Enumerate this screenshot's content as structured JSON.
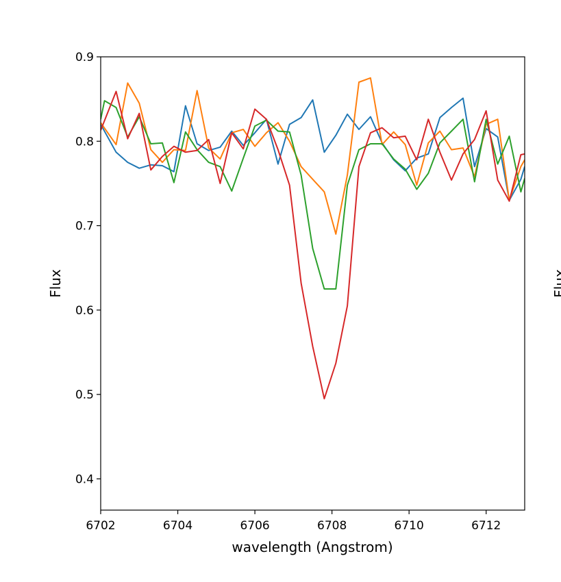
{
  "chart_data": {
    "type": "line",
    "title": "",
    "xlabel": "wavelength (Angstrom)",
    "ylabel": "Flux",
    "xlim": [
      6702,
      6713
    ],
    "ylim": [
      0.363,
      0.9
    ],
    "xticks": [
      6702,
      6704,
      6706,
      6708,
      6710,
      6712
    ],
    "yticks": [
      0.4,
      0.5,
      0.6,
      0.7,
      0.8,
      0.9
    ],
    "ytick_labels": [
      "0.4",
      "0.5",
      "0.6",
      "0.7",
      "0.8",
      "0.9"
    ],
    "xtick_labels": [
      "6702",
      "6704",
      "6706",
      "6708",
      "6710",
      "6712"
    ],
    "grid": false,
    "legend": "none",
    "clipped_neighbor_ylabel": "Flux",
    "series": [
      {
        "color": "#1f77b4",
        "x": [
          6702.0,
          6702.4,
          6702.7,
          6703.0,
          6703.3,
          6703.6,
          6703.9,
          6704.2,
          6704.5,
          6704.8,
          6705.1,
          6705.4,
          6705.7,
          6706.0,
          6706.3,
          6706.6,
          6706.9,
          6707.2,
          6707.5,
          6707.8,
          6708.1,
          6708.4,
          6708.7,
          6709.0,
          6709.3,
          6709.6,
          6709.9,
          6710.2,
          6710.5,
          6710.8,
          6711.1,
          6711.4,
          6711.7,
          6712.0,
          6712.3,
          6712.6,
          6712.9,
          6713.0
        ],
        "y": [
          0.82,
          0.787,
          0.775,
          0.768,
          0.772,
          0.771,
          0.764,
          0.842,
          0.797,
          0.789,
          0.793,
          0.812,
          0.795,
          0.81,
          0.826,
          0.773,
          0.82,
          0.828,
          0.849,
          0.787,
          0.807,
          0.832,
          0.814,
          0.829,
          0.798,
          0.778,
          0.765,
          0.78,
          0.785,
          0.828,
          0.84,
          0.851,
          0.77,
          0.815,
          0.805,
          0.73,
          0.755,
          0.77
        ]
      },
      {
        "color": "#ff7f0e",
        "x": [
          6702.0,
          6702.4,
          6702.7,
          6703.0,
          6703.3,
          6703.6,
          6703.9,
          6704.2,
          6704.5,
          6704.8,
          6705.1,
          6705.4,
          6705.7,
          6706.0,
          6706.3,
          6706.6,
          6706.9,
          6707.2,
          6707.5,
          6707.8,
          6708.1,
          6708.4,
          6708.7,
          6709.0,
          6709.3,
          6709.6,
          6709.9,
          6710.2,
          6710.5,
          6710.8,
          6711.1,
          6711.4,
          6711.7,
          6712.0,
          6712.3,
          6712.6,
          6712.9,
          6713.0
        ],
        "y": [
          0.822,
          0.796,
          0.869,
          0.845,
          0.79,
          0.775,
          0.79,
          0.789,
          0.86,
          0.792,
          0.779,
          0.81,
          0.814,
          0.794,
          0.81,
          0.822,
          0.8,
          0.77,
          0.755,
          0.74,
          0.69,
          0.76,
          0.87,
          0.875,
          0.796,
          0.811,
          0.796,
          0.748,
          0.798,
          0.812,
          0.79,
          0.792,
          0.758,
          0.82,
          0.826,
          0.73,
          0.77,
          0.778
        ]
      },
      {
        "color": "#2ca02c",
        "x": [
          6702.0,
          6702.1,
          6702.4,
          6702.7,
          6703.0,
          6703.3,
          6703.6,
          6703.9,
          6704.2,
          6704.5,
          6704.8,
          6705.1,
          6705.4,
          6705.7,
          6706.0,
          6706.3,
          6706.6,
          6706.9,
          6707.2,
          6707.5,
          6707.8,
          6708.1,
          6708.4,
          6708.7,
          6709.0,
          6709.3,
          6709.6,
          6709.9,
          6710.2,
          6710.5,
          6710.8,
          6711.1,
          6711.4,
          6711.7,
          6712.0,
          6712.3,
          6712.6,
          6712.9,
          6713.0
        ],
        "y": [
          0.826,
          0.848,
          0.84,
          0.805,
          0.829,
          0.797,
          0.798,
          0.751,
          0.811,
          0.79,
          0.775,
          0.77,
          0.741,
          0.78,
          0.818,
          0.825,
          0.812,
          0.811,
          0.76,
          0.673,
          0.625,
          0.625,
          0.748,
          0.79,
          0.797,
          0.797,
          0.779,
          0.767,
          0.743,
          0.762,
          0.798,
          0.812,
          0.826,
          0.752,
          0.826,
          0.773,
          0.806,
          0.74,
          0.756
        ]
      },
      {
        "color": "#d62728",
        "x": [
          6702.0,
          6702.4,
          6702.7,
          6703.0,
          6703.3,
          6703.6,
          6703.9,
          6704.2,
          6704.5,
          6704.8,
          6705.1,
          6705.4,
          6705.7,
          6706.0,
          6706.3,
          6706.6,
          6706.9,
          6707.2,
          6707.5,
          6707.8,
          6708.1,
          6708.4,
          6708.7,
          6709.0,
          6709.3,
          6709.6,
          6709.9,
          6710.2,
          6710.5,
          6710.8,
          6711.1,
          6711.4,
          6711.7,
          6712.0,
          6712.3,
          6712.6,
          6712.9,
          6713.0
        ],
        "y": [
          0.813,
          0.859,
          0.803,
          0.833,
          0.766,
          0.782,
          0.794,
          0.787,
          0.789,
          0.802,
          0.75,
          0.81,
          0.791,
          0.838,
          0.826,
          0.79,
          0.748,
          0.632,
          0.557,
          0.495,
          0.537,
          0.605,
          0.77,
          0.81,
          0.816,
          0.804,
          0.806,
          0.778,
          0.826,
          0.787,
          0.754,
          0.785,
          0.802,
          0.836,
          0.754,
          0.729,
          0.784,
          0.785
        ]
      }
    ]
  }
}
